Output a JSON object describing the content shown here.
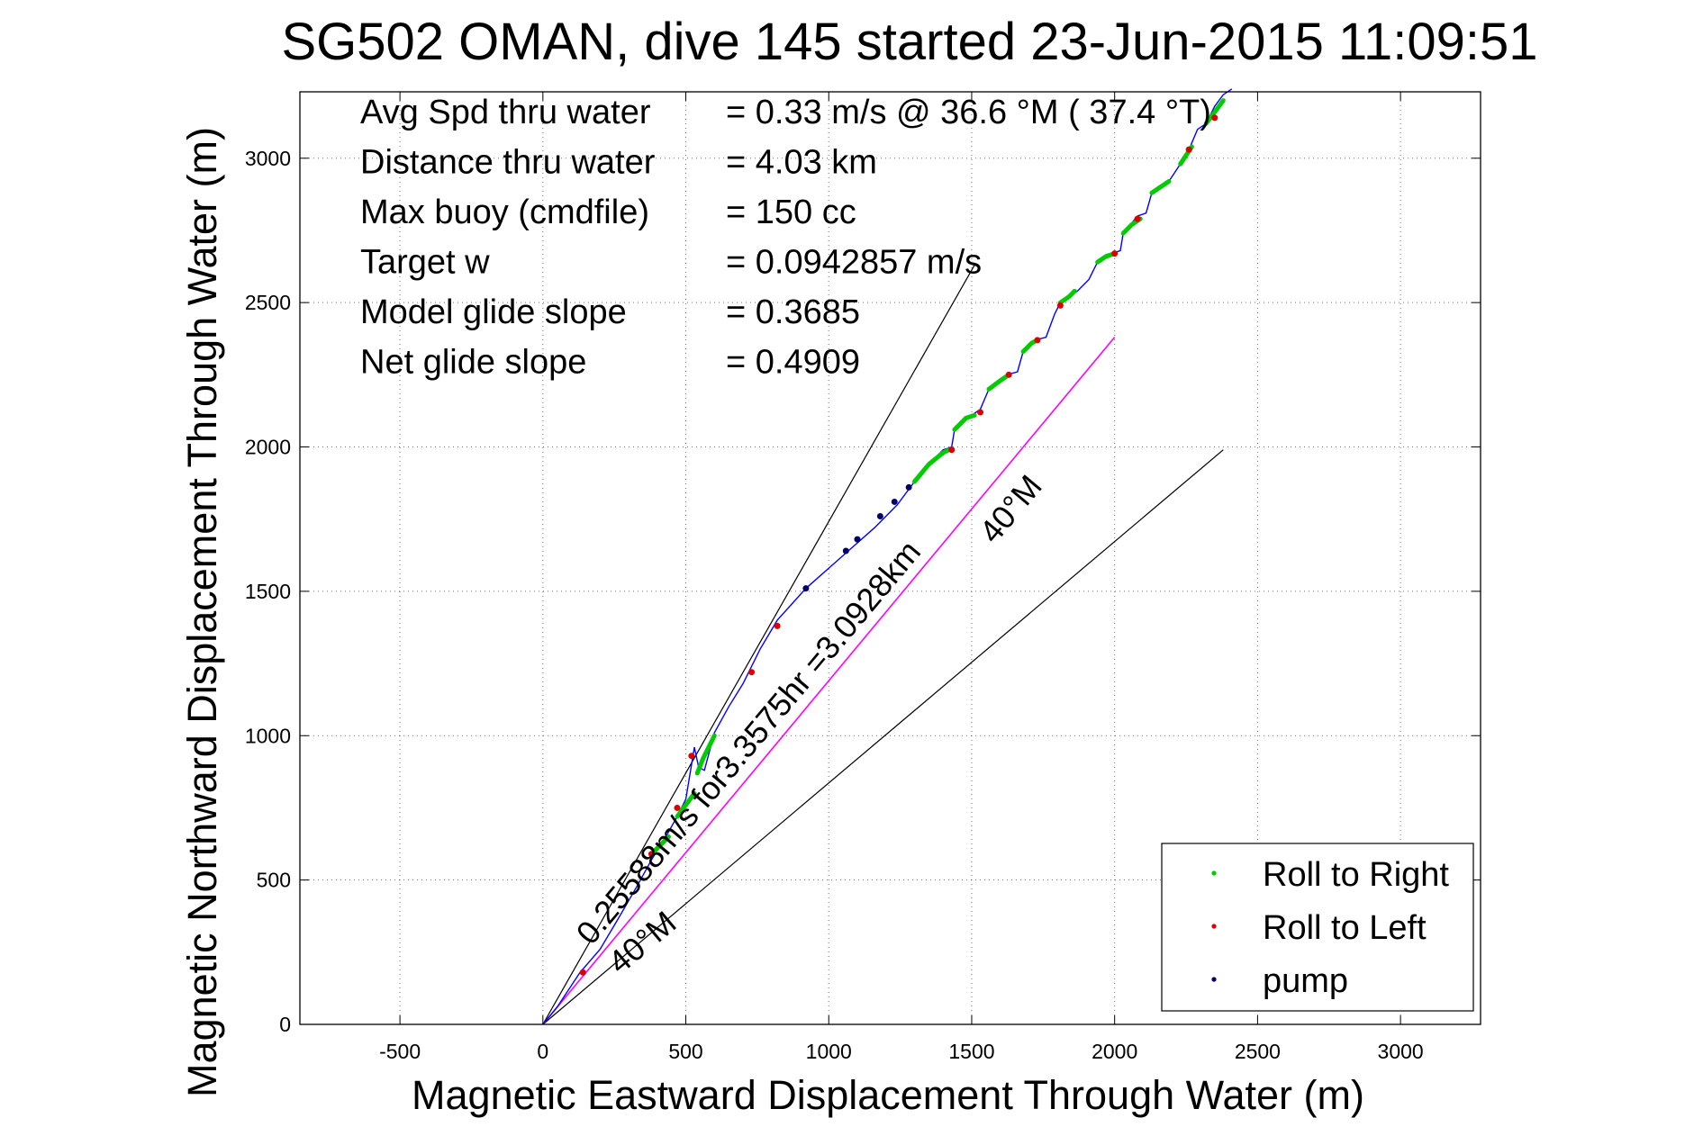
{
  "chart_data": {
    "type": "scatter",
    "title": "SG502 OMAN, dive 145 started 23-Jun-2015 11:09:51",
    "xlabel": "Magnetic Eastward Displacement Through Water (m)",
    "ylabel": "Magnetic Northward Displacement Through Water (m)",
    "xlim": [
      -850,
      3280
    ],
    "ylim": [
      0,
      3230
    ],
    "xticks": [
      -500,
      0,
      500,
      1000,
      1500,
      2000,
      2500,
      3000
    ],
    "yticks": [
      0,
      500,
      1000,
      1500,
      2000,
      2500,
      3000
    ],
    "xtick_labels": [
      "-500",
      "0",
      "500",
      "1000",
      "1500",
      "2000",
      "2500",
      "3000"
    ],
    "ytick_labels": [
      "0",
      "500",
      "1000",
      "1500",
      "2000",
      "2500",
      "3000"
    ],
    "grid": true,
    "info_block": [
      {
        "label": "Avg Spd thru water",
        "value": "=  0.33 m/s @  36.6 °M ( 37.4 °T)"
      },
      {
        "label": "Distance thru water",
        "value": "=  4.03 km"
      },
      {
        "label": "Max buoy (cmdfile)",
        "value": "= 150 cc"
      },
      {
        "label": "Target w",
        "value": "= 0.0942857 m/s"
      },
      {
        "label": "Model glide slope",
        "value": "= 0.3685"
      },
      {
        "label": "Net glide slope",
        "value": "= 0.4909"
      }
    ],
    "reference_lines": [
      {
        "label": "40°M",
        "x": [
          0,
          1510
        ],
        "y": [
          0,
          2630
        ],
        "color": "#000000"
      },
      {
        "label": "40°M",
        "x": [
          0,
          2380
        ],
        "y": [
          0,
          1990
        ],
        "color": "#000000"
      },
      {
        "label": "",
        "x": [
          0,
          2000
        ],
        "y": [
          0,
          2380
        ],
        "color": "#ff00ff"
      }
    ],
    "annotations": [
      {
        "text": "0.25588m/s for3.3575hr =3.0928km",
        "x": 170,
        "y": 270,
        "angle_deg": 50,
        "related": "magenta line"
      },
      {
        "text": "40°M",
        "x": 270,
        "y": 170,
        "angle_deg": 40,
        "related": "lower black line"
      },
      {
        "text": "40°M",
        "x": 1580,
        "y": 1660,
        "angle_deg": 50,
        "related": "magenta line"
      }
    ],
    "track": {
      "color": "#0000ff",
      "x": [
        0,
        50,
        130,
        200,
        260,
        330,
        380,
        430,
        470,
        500,
        520,
        530,
        545,
        565,
        600,
        650,
        700,
        760,
        820,
        920,
        1000,
        1080,
        1160,
        1240,
        1300,
        1350,
        1400,
        1430,
        1440,
        1500,
        1530,
        1560,
        1620,
        1660,
        1680,
        1720,
        1760,
        1790,
        1810,
        1870,
        1910,
        1940,
        1990,
        2020,
        2030,
        2080,
        2110,
        2130,
        2190,
        2230,
        2260,
        2290,
        2320,
        2350,
        2380,
        2410
      ],
      "y": [
        0,
        60,
        180,
        260,
        360,
        480,
        570,
        650,
        720,
        780,
        900,
        960,
        890,
        880,
        1010,
        1100,
        1180,
        1300,
        1400,
        1510,
        1580,
        1650,
        1720,
        1800,
        1880,
        1940,
        1990,
        2000,
        2060,
        2110,
        2130,
        2200,
        2250,
        2260,
        2330,
        2370,
        2380,
        2460,
        2500,
        2540,
        2580,
        2640,
        2670,
        2680,
        2740,
        2800,
        2810,
        2880,
        2920,
        2980,
        3030,
        3100,
        3120,
        3180,
        3220,
        3240
      ]
    },
    "series": [
      {
        "name": "Roll to Right",
        "color": "#00cc00",
        "marker": "dot",
        "segments": [
          {
            "x": [
              1300,
              1350,
              1400,
              1420
            ],
            "y": [
              1880,
              1940,
              1980,
              1990
            ]
          },
          {
            "x": [
              1440,
              1480,
              1510
            ],
            "y": [
              2060,
              2100,
              2110
            ]
          },
          {
            "x": [
              1560,
              1600,
              1630
            ],
            "y": [
              2200,
              2230,
              2250
            ]
          },
          {
            "x": [
              1680,
              1710,
              1730
            ],
            "y": [
              2330,
              2360,
              2370
            ]
          },
          {
            "x": [
              1810,
              1840,
              1860
            ],
            "y": [
              2500,
              2520,
              2540
            ]
          },
          {
            "x": [
              1940,
              1970,
              2000
            ],
            "y": [
              2640,
              2660,
              2670
            ]
          },
          {
            "x": [
              2030,
              2060,
              2090
            ],
            "y": [
              2740,
              2770,
              2790
            ]
          },
          {
            "x": [
              2130,
              2160,
              2190
            ],
            "y": [
              2880,
              2900,
              2920
            ]
          },
          {
            "x": [
              2230,
              2250,
              2270
            ],
            "y": [
              2980,
              3010,
              3040
            ]
          },
          {
            "x": [
              2320,
              2350,
              2380
            ],
            "y": [
              3120,
              3160,
              3200
            ]
          },
          {
            "x": [
              540,
              560,
              600
            ],
            "y": [
              870,
              920,
              1000
            ]
          },
          {
            "x": [
              470,
              500,
              530
            ],
            "y": [
              720,
              760,
              800
            ]
          },
          {
            "x": [
              390,
              420,
              440
            ],
            "y": [
              600,
              630,
              650
            ]
          }
        ]
      },
      {
        "name": "Roll to Left",
        "color": "#dd0000",
        "marker": "dot",
        "x": [
          1430,
          1530,
          1630,
          1730,
          1810,
          2000,
          2080,
          2260,
          2350,
          520,
          470,
          380,
          140,
          730,
          820
        ],
        "y": [
          1990,
          2120,
          2250,
          2370,
          2490,
          2670,
          2790,
          3030,
          3140,
          930,
          750,
          590,
          180,
          1220,
          1380
        ]
      },
      {
        "name": "pump",
        "color": "#000066",
        "marker": "dot",
        "x": [
          1060,
          1100,
          1180,
          1230,
          1280,
          920
        ],
        "y": [
          1640,
          1680,
          1760,
          1810,
          1860,
          1510
        ]
      }
    ],
    "legend": {
      "placement": "bottom-right",
      "entries": [
        "Roll to Right",
        "Roll to Left",
        "pump"
      ]
    }
  }
}
